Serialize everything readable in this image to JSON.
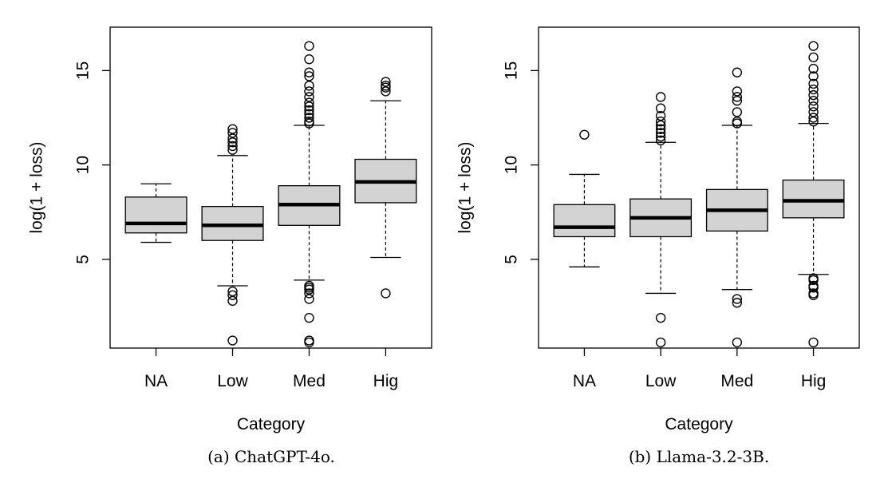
{
  "chart_data": [
    {
      "type": "boxplot",
      "caption": "(a) ChatGPT-4o.",
      "xlabel": "Category",
      "ylabel": "log(1 + loss)",
      "categories": [
        "NA",
        "Low",
        "Med",
        "Hig"
      ],
      "yticks": [
        5,
        10,
        15
      ],
      "ylim": [
        0.3,
        17.3
      ],
      "boxes": [
        {
          "category": "NA",
          "whisker_low": 5.9,
          "q1": 6.4,
          "median": 6.9,
          "q3": 8.3,
          "whisker_high": 9.0,
          "outliers": []
        },
        {
          "category": "Low",
          "whisker_low": 3.6,
          "q1": 6.0,
          "median": 6.8,
          "q3": 7.8,
          "whisker_high": 10.5,
          "outliers": [
            0.7,
            2.8,
            3.1,
            3.3,
            10.8,
            11.0,
            11.2,
            11.4,
            11.7,
            11.9
          ]
        },
        {
          "category": "Med",
          "whisker_low": 3.9,
          "q1": 6.8,
          "median": 7.9,
          "q3": 8.9,
          "whisker_high": 12.1,
          "outliers": [
            0.6,
            0.7,
            1.9,
            2.9,
            3.2,
            3.4,
            3.5,
            3.6,
            12.2,
            12.3,
            12.5,
            12.7,
            12.9,
            13.1,
            13.3,
            13.6,
            13.9,
            14.2,
            14.7,
            14.9,
            15.6,
            16.3
          ]
        },
        {
          "category": "Hig",
          "whisker_low": 5.1,
          "q1": 8.0,
          "median": 9.1,
          "q3": 10.3,
          "whisker_high": 13.4,
          "outliers": [
            3.2,
            13.9,
            14.1,
            14.2,
            14.4
          ]
        }
      ]
    },
    {
      "type": "boxplot",
      "caption": "(b) Llama-3.2-3B.",
      "xlabel": "Category",
      "ylabel": "log(1 + loss)",
      "categories": [
        "NA",
        "Low",
        "Med",
        "Hig"
      ],
      "yticks": [
        5,
        10,
        15
      ],
      "ylim": [
        0.3,
        17.3
      ],
      "boxes": [
        {
          "category": "NA",
          "whisker_low": 4.6,
          "q1": 6.2,
          "median": 6.7,
          "q3": 7.9,
          "whisker_high": 9.5,
          "outliers": [
            11.6
          ]
        },
        {
          "category": "Low",
          "whisker_low": 3.2,
          "q1": 6.2,
          "median": 7.2,
          "q3": 8.2,
          "whisker_high": 11.2,
          "outliers": [
            0.6,
            1.9,
            11.3,
            11.5,
            11.7,
            11.9,
            12.1,
            12.3,
            12.6,
            13.0,
            13.6
          ]
        },
        {
          "category": "Med",
          "whisker_low": 3.4,
          "q1": 6.5,
          "median": 7.6,
          "q3": 8.7,
          "whisker_high": 12.1,
          "outliers": [
            0.6,
            2.7,
            2.9,
            12.2,
            12.3,
            12.8,
            13.4,
            13.6,
            13.9,
            14.9
          ]
        },
        {
          "category": "Hig",
          "whisker_low": 4.2,
          "q1": 7.2,
          "median": 8.1,
          "q3": 9.2,
          "whisker_high": 12.2,
          "outliers": [
            0.6,
            3.1,
            3.2,
            3.5,
            3.6,
            3.9,
            4.0,
            12.3,
            12.5,
            12.8,
            13.1,
            13.4,
            13.7,
            14.0,
            14.3,
            14.7,
            15.1,
            15.7,
            16.3
          ]
        }
      ]
    }
  ]
}
